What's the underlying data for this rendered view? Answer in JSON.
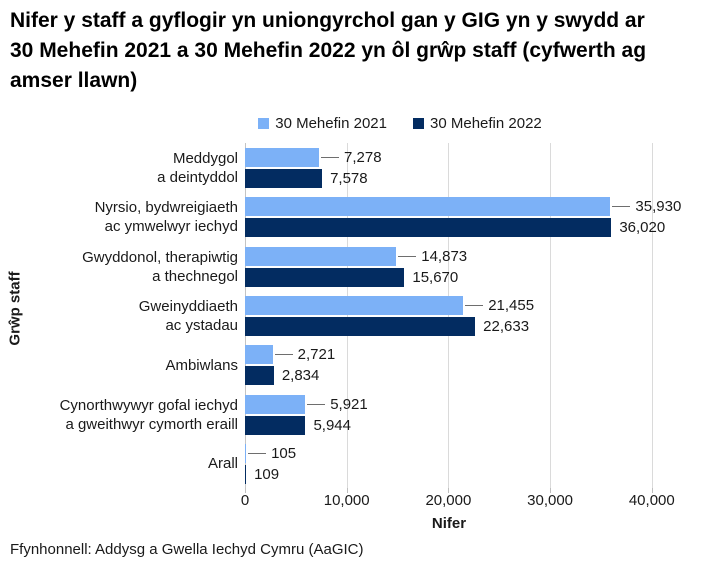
{
  "title": "Nifer y staff a gyflogir yn uniongyrchol gan y GIG yn y swydd ar 30 Mehefin 2021 a 30 Mehefin 2022 yn ôl grŵp staff (cyfwerth ag amser llawn)",
  "source": "Ffynhonnell: Addysg a Gwella Iechyd Cymru (AaGIC)",
  "colors": {
    "series_2021": "#7cb1f7",
    "series_2022": "#032c61",
    "gridline": "#dadada",
    "axis": "#c4c4c4",
    "leader": "#6e6e6e",
    "text": "#1a1a1a"
  },
  "chart_data": {
    "type": "bar",
    "orientation": "horizontal",
    "title": "Nifer y staff a gyflogir yn uniongyrchol gan y GIG yn y swydd ar 30 Mehefin 2021 a 30 Mehefin 2022 yn ôl grŵp staff (cyfwerth ag amser llawn)",
    "xlabel": "Nifer",
    "ylabel": "Grŵp staff",
    "xlim": [
      0,
      40000
    ],
    "xticks": [
      0,
      10000,
      20000,
      30000,
      40000
    ],
    "xtick_labels": [
      "0",
      "10,000",
      "20,000",
      "30,000",
      "40,000"
    ],
    "grid": true,
    "legend_position": "top",
    "categories": [
      [
        "Meddygol",
        "a deintyddol"
      ],
      [
        "Nyrsio, bydwreigiaeth",
        "ac ymwelwyr iechyd"
      ],
      [
        "Gwyddonol, therapiwtig",
        "a thechnegol"
      ],
      [
        "Gweinyddiaeth",
        "ac ystadau"
      ],
      [
        "Ambiwlans"
      ],
      [
        "Cynorthwywyr gofal iechyd",
        "a gweithwyr cymorth eraill"
      ],
      [
        "Arall"
      ]
    ],
    "series": [
      {
        "name": "30 Mehefin 2021",
        "color": "#7cb1f7",
        "values": [
          7278,
          35930,
          14873,
          21455,
          2721,
          5921,
          105
        ],
        "labels": [
          "7,278",
          "35,930",
          "14,873",
          "21,455",
          "2,721",
          "5,921",
          "105"
        ]
      },
      {
        "name": "30 Mehefin 2022",
        "color": "#032c61",
        "values": [
          7578,
          36020,
          15670,
          22633,
          2834,
          5944,
          109
        ],
        "labels": [
          "7,578",
          "36,020",
          "15,670",
          "22,633",
          "2,834",
          "5,944",
          "109"
        ]
      }
    ]
  }
}
